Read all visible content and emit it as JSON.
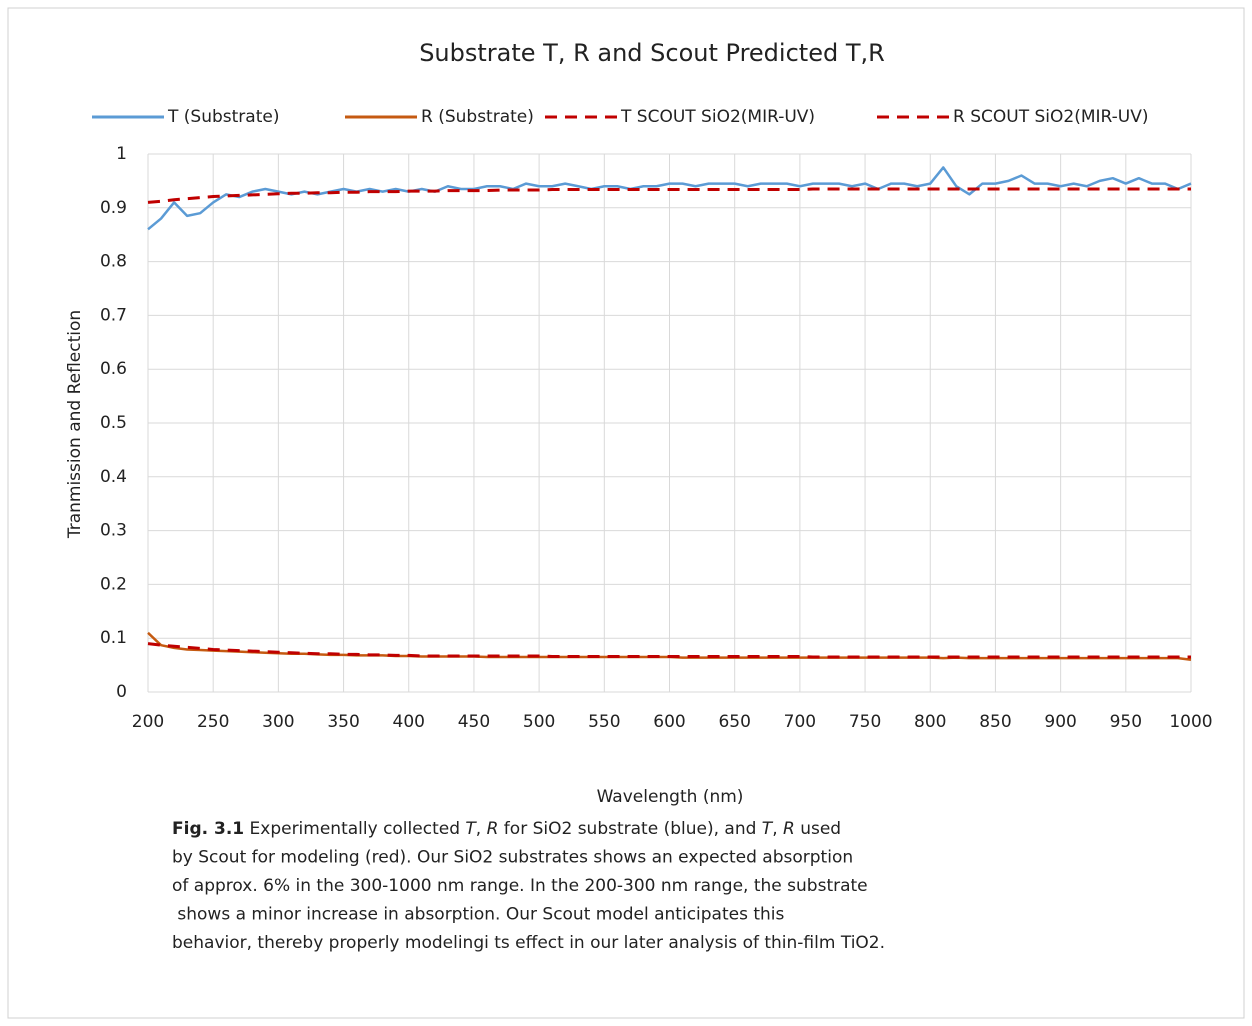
{
  "chart_data": {
    "type": "line",
    "title": "Substrate T, R and Scout Predicted T,R",
    "x_label": "Wavelength (nm)",
    "y_label": "Tranmission and Reflection",
    "xlim": [
      200,
      1000
    ],
    "xticks": [
      200,
      250,
      300,
      350,
      400,
      450,
      500,
      550,
      600,
      650,
      700,
      750,
      800,
      850,
      900,
      950,
      1000
    ],
    "ylim": [
      0,
      1
    ],
    "yticks": [
      0,
      0.1,
      0.2,
      0.3,
      0.4,
      0.5,
      0.6,
      0.7,
      0.8,
      0.9,
      1
    ],
    "grid": true,
    "legend": "top",
    "x": [
      200,
      210,
      220,
      230,
      240,
      250,
      260,
      270,
      280,
      290,
      300,
      310,
      320,
      330,
      340,
      350,
      360,
      370,
      380,
      390,
      400,
      410,
      420,
      430,
      440,
      450,
      460,
      470,
      480,
      490,
      500,
      510,
      520,
      530,
      540,
      550,
      560,
      570,
      580,
      590,
      600,
      610,
      620,
      630,
      640,
      650,
      660,
      670,
      680,
      690,
      700,
      710,
      720,
      730,
      740,
      750,
      760,
      770,
      780,
      790,
      800,
      810,
      820,
      830,
      840,
      850,
      860,
      870,
      880,
      890,
      900,
      910,
      920,
      930,
      940,
      950,
      960,
      970,
      980,
      990,
      1000
    ],
    "series": [
      {
        "name": "T (Substrate)",
        "color": "#5b9bd5",
        "dashed": false,
        "values": [
          0.86,
          0.88,
          0.91,
          0.885,
          0.89,
          0.91,
          0.925,
          0.92,
          0.93,
          0.935,
          0.93,
          0.925,
          0.93,
          0.925,
          0.93,
          0.935,
          0.93,
          0.935,
          0.93,
          0.935,
          0.93,
          0.935,
          0.93,
          0.94,
          0.935,
          0.935,
          0.94,
          0.94,
          0.935,
          0.945,
          0.94,
          0.94,
          0.945,
          0.94,
          0.935,
          0.94,
          0.94,
          0.935,
          0.94,
          0.94,
          0.945,
          0.945,
          0.94,
          0.945,
          0.945,
          0.945,
          0.94,
          0.945,
          0.945,
          0.945,
          0.94,
          0.945,
          0.945,
          0.945,
          0.94,
          0.945,
          0.935,
          0.945,
          0.945,
          0.94,
          0.945,
          0.975,
          0.94,
          0.925,
          0.945,
          0.945,
          0.95,
          0.96,
          0.945,
          0.945,
          0.94,
          0.945,
          0.94,
          0.95,
          0.955,
          0.945,
          0.955,
          0.945,
          0.945,
          0.935,
          0.945
        ]
      },
      {
        "name": "R (Substrate)",
        "color": "#c55a11",
        "dashed": false,
        "values": [
          0.11,
          0.087,
          0.082,
          0.079,
          0.078,
          0.077,
          0.076,
          0.075,
          0.074,
          0.073,
          0.072,
          0.071,
          0.071,
          0.07,
          0.069,
          0.069,
          0.068,
          0.068,
          0.068,
          0.067,
          0.067,
          0.066,
          0.066,
          0.066,
          0.066,
          0.066,
          0.065,
          0.065,
          0.065,
          0.065,
          0.065,
          0.065,
          0.065,
          0.065,
          0.065,
          0.065,
          0.065,
          0.065,
          0.065,
          0.065,
          0.065,
          0.064,
          0.064,
          0.064,
          0.064,
          0.064,
          0.064,
          0.064,
          0.064,
          0.064,
          0.064,
          0.064,
          0.064,
          0.064,
          0.064,
          0.064,
          0.064,
          0.064,
          0.064,
          0.064,
          0.064,
          0.063,
          0.064,
          0.063,
          0.063,
          0.063,
          0.063,
          0.063,
          0.063,
          0.063,
          0.063,
          0.063,
          0.063,
          0.063,
          0.063,
          0.063,
          0.063,
          0.063,
          0.063,
          0.063,
          0.06
        ]
      },
      {
        "name": "T SCOUT SiO2(MIR-UV)",
        "color": "#c00000",
        "dashed": true,
        "values": [
          0.91,
          0.912,
          0.915,
          0.917,
          0.919,
          0.921,
          0.922,
          0.923,
          0.924,
          0.925,
          0.926,
          0.927,
          0.927,
          0.928,
          0.928,
          0.929,
          0.929,
          0.93,
          0.93,
          0.93,
          0.931,
          0.931,
          0.931,
          0.932,
          0.932,
          0.932,
          0.932,
          0.933,
          0.933,
          0.933,
          0.933,
          0.934,
          0.934,
          0.934,
          0.934,
          0.934,
          0.934,
          0.934,
          0.934,
          0.934,
          0.934,
          0.934,
          0.934,
          0.934,
          0.934,
          0.934,
          0.934,
          0.934,
          0.934,
          0.934,
          0.934,
          0.935,
          0.935,
          0.935,
          0.935,
          0.935,
          0.935,
          0.935,
          0.935,
          0.935,
          0.935,
          0.935,
          0.935,
          0.935,
          0.935,
          0.935,
          0.935,
          0.935,
          0.935,
          0.935,
          0.935,
          0.935,
          0.935,
          0.935,
          0.935,
          0.935,
          0.935,
          0.935,
          0.935,
          0.935,
          0.935
        ]
      },
      {
        "name": "R SCOUT SiO2(MIR-UV)",
        "color": "#c00000",
        "dashed": true,
        "values": [
          0.09,
          0.087,
          0.085,
          0.083,
          0.081,
          0.079,
          0.078,
          0.077,
          0.076,
          0.075,
          0.074,
          0.073,
          0.072,
          0.071,
          0.071,
          0.07,
          0.07,
          0.069,
          0.069,
          0.068,
          0.068,
          0.067,
          0.067,
          0.067,
          0.067,
          0.067,
          0.067,
          0.067,
          0.067,
          0.067,
          0.067,
          0.066,
          0.066,
          0.066,
          0.066,
          0.066,
          0.066,
          0.066,
          0.066,
          0.066,
          0.066,
          0.066,
          0.066,
          0.066,
          0.066,
          0.066,
          0.066,
          0.066,
          0.066,
          0.066,
          0.066,
          0.065,
          0.065,
          0.065,
          0.065,
          0.065,
          0.065,
          0.065,
          0.065,
          0.065,
          0.065,
          0.065,
          0.065,
          0.065,
          0.065,
          0.065,
          0.065,
          0.065,
          0.065,
          0.065,
          0.065,
          0.065,
          0.065,
          0.065,
          0.065,
          0.065,
          0.065,
          0.065,
          0.065,
          0.065,
          0.065
        ]
      }
    ]
  },
  "caption": {
    "lines": [
      [
        {
          "text": "Fig. 3.1",
          "bold": true
        },
        {
          "text": " Experimentally collected "
        },
        {
          "text": "T",
          "italic": true
        },
        {
          "text": ", "
        },
        {
          "text": "R",
          "italic": true
        },
        {
          "text": " for SiO2 substrate (blue), and "
        },
        {
          "text": "T",
          "italic": true
        },
        {
          "text": ", "
        },
        {
          "text": "R",
          "italic": true
        },
        {
          "text": " used"
        }
      ],
      [
        {
          "text": "by Scout for modeling (red). Our SiO2 substrates shows an expected absorption"
        }
      ],
      [
        {
          "text": "of approx. 6% in the 300-1000 nm range. In the 200-300 nm range, the substrate"
        }
      ],
      [
        {
          "text": " shows a minor increase in absorption. Our Scout model anticipates this"
        }
      ],
      [
        {
          "text": "behavior, thereby properly modelingi ts effect in our later analysis of thin-film TiO2."
        }
      ]
    ]
  }
}
